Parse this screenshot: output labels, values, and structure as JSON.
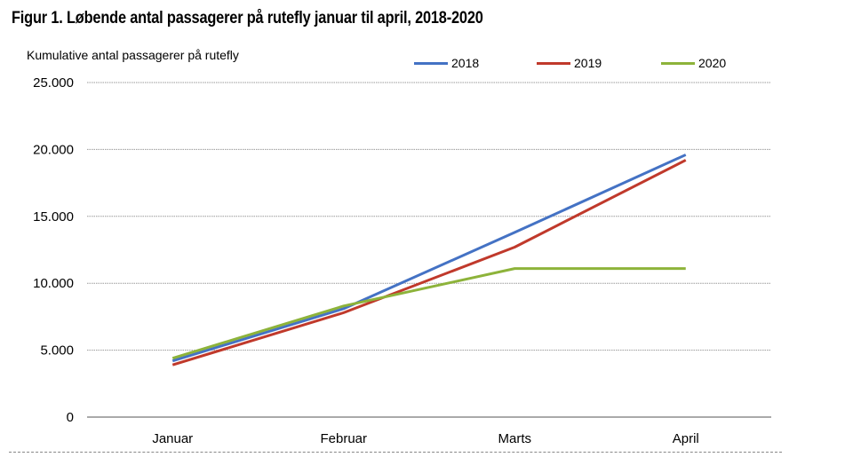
{
  "page": {
    "title": "Figur 1. Løbende antal passagerer på rutefly januar til april, 2018-2020"
  },
  "chart_data": {
    "type": "line",
    "title": "Figur 1. Løbende antal passagerer på rutefly januar til april, 2018-2020",
    "ylabel": "Kumulative antal passagerer på rutefly",
    "xlabel": "",
    "categories": [
      "Januar",
      "Februar",
      "Marts",
      "April"
    ],
    "ylim": [
      0,
      25000
    ],
    "yticks": [
      0,
      5000,
      10000,
      15000,
      20000,
      25000
    ],
    "ytick_labels": [
      "0",
      "5.000",
      "10.000",
      "15.000",
      "20.000",
      "25.000"
    ],
    "grid": true,
    "legend_position": "top-right",
    "series": [
      {
        "name": "2018",
        "color": "#4472C4",
        "values": [
          4200,
          8100,
          13800,
          19600
        ]
      },
      {
        "name": "2019",
        "color": "#C0392B",
        "values": [
          3900,
          7800,
          12700,
          19200
        ]
      },
      {
        "name": "2020",
        "color": "#8DB33A",
        "values": [
          4400,
          8300,
          11100,
          11100
        ]
      }
    ]
  }
}
